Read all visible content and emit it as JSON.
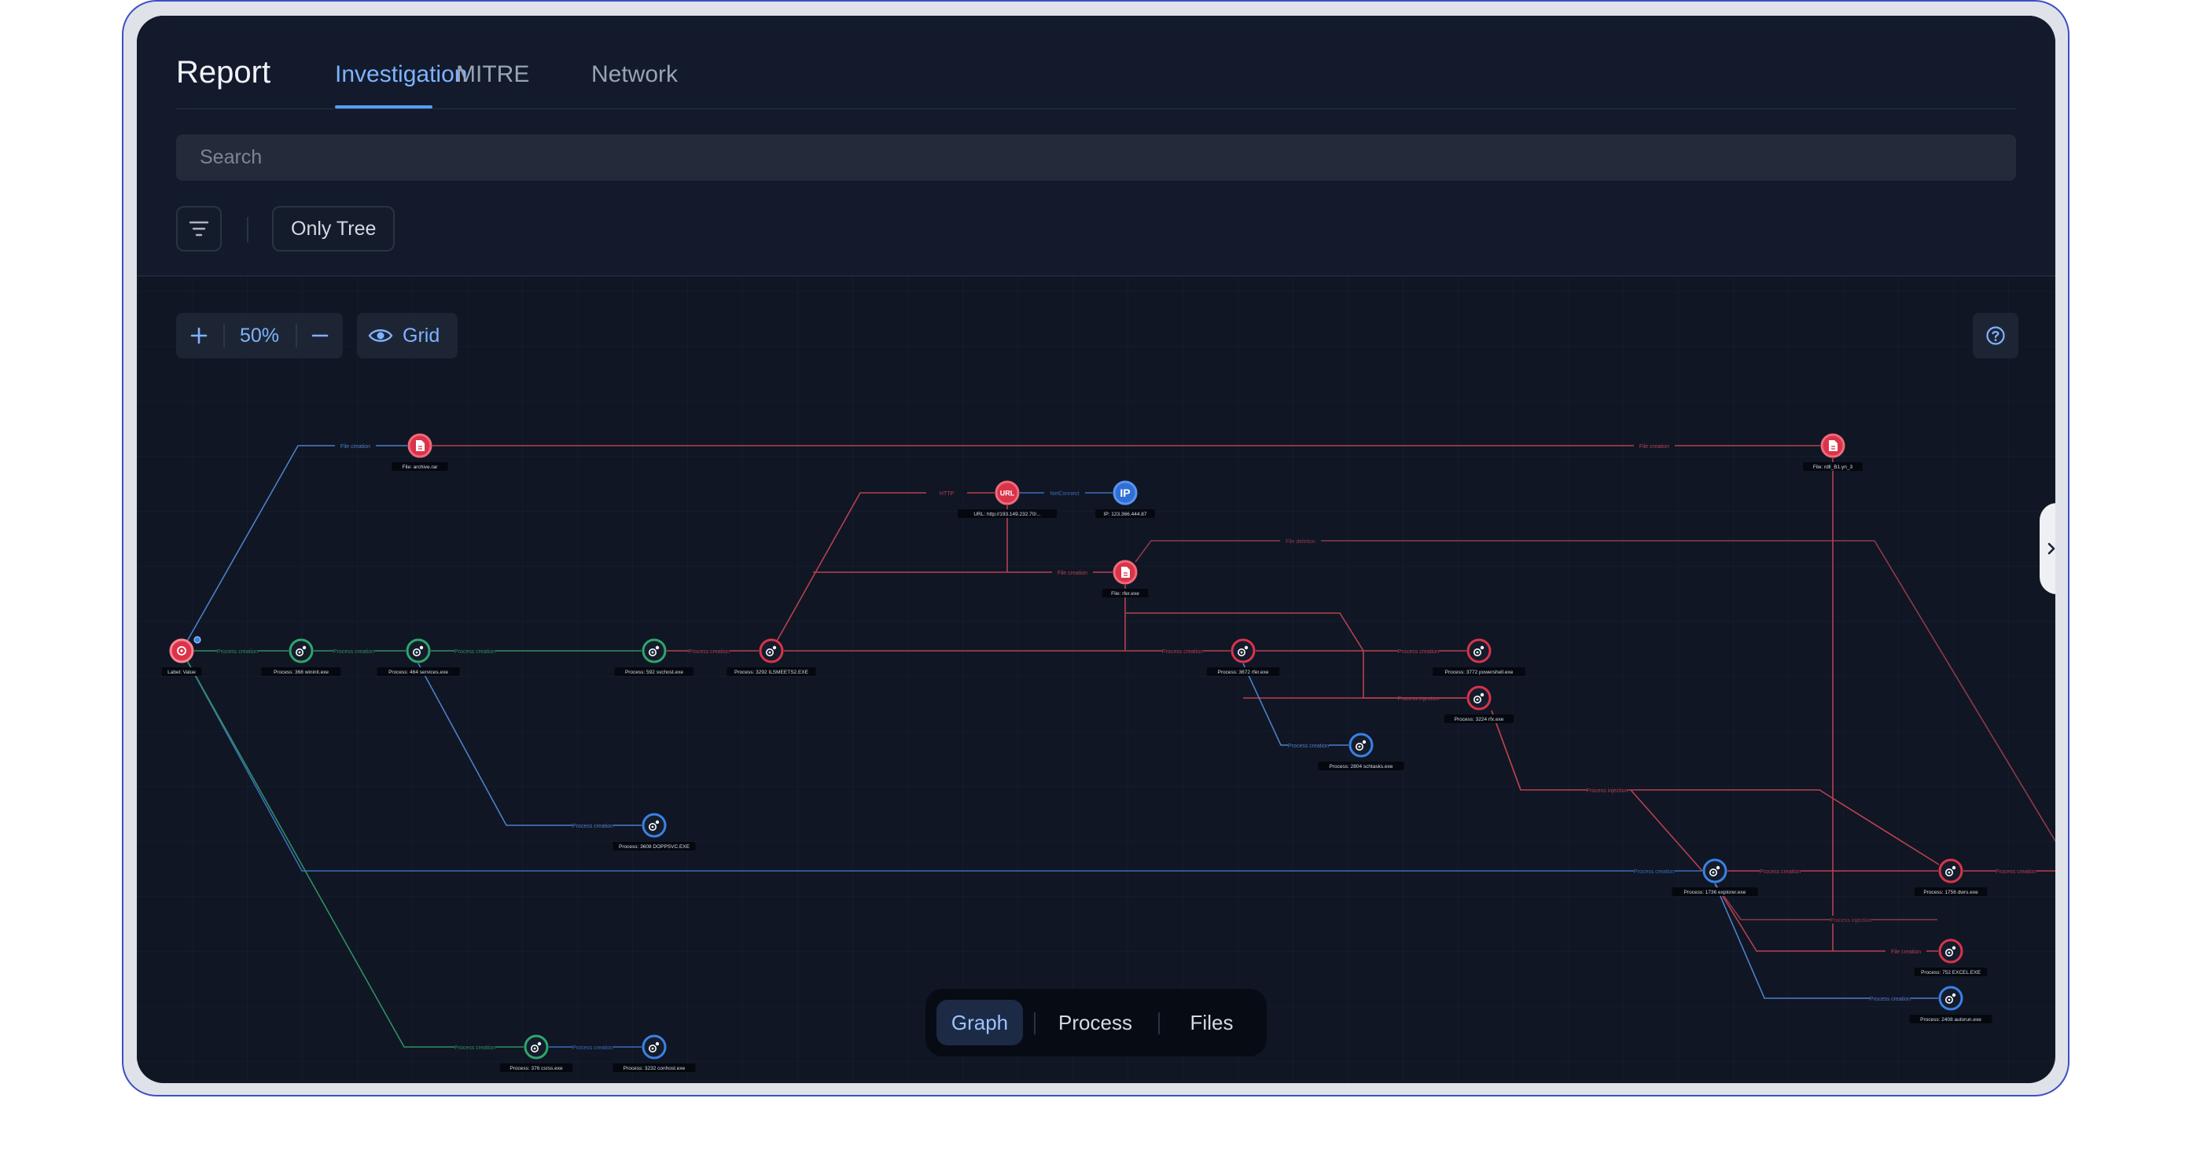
{
  "header": {
    "title": "Report",
    "tabs": [
      {
        "label": "Investigation",
        "active": true
      },
      {
        "label": "MITRE",
        "active": false
      },
      {
        "label": "Network",
        "active": false
      }
    ]
  },
  "search": {
    "placeholder": "Search",
    "value": ""
  },
  "filters": {
    "only_tree_label": "Only Tree"
  },
  "toolbar": {
    "zoom_level": "50%",
    "grid_label": "Grid"
  },
  "bottom_tabs": [
    {
      "label": "Graph",
      "active": true
    },
    {
      "label": "Process",
      "active": false
    },
    {
      "label": "Files",
      "active": false
    }
  ],
  "graph": {
    "colors": {
      "process_green": "#2fa66b",
      "process_blue": "#3a82e6",
      "malicious": "#d9344a",
      "ip_blue": "#2f6fd6"
    },
    "nodes": [
      {
        "id": "label",
        "kind": "label",
        "label": "Label: Value"
      },
      {
        "id": "archive",
        "kind": "file-bad",
        "label": "File: archive.rar"
      },
      {
        "id": "wininit",
        "kind": "proc-green",
        "label": "Process: 368 wininit.exe"
      },
      {
        "id": "services",
        "kind": "proc-green",
        "label": "Process: 464 services.exe"
      },
      {
        "id": "svchost",
        "kind": "proc-green",
        "label": "Process: 592 svchost.exe"
      },
      {
        "id": "shm",
        "kind": "proc-bad",
        "label": "Process: 3292 ILSMEETS2.EXE"
      },
      {
        "id": "url",
        "kind": "url",
        "label": "URL: http://193.149.232.70/..."
      },
      {
        "id": "ip",
        "kind": "ip",
        "label": "IP: 123.366.444.87"
      },
      {
        "id": "fileexe",
        "kind": "file-bad",
        "label": "File: rfer.exe"
      },
      {
        "id": "rfer",
        "kind": "proc-bad",
        "label": "Process: 3672 rfer.exe"
      },
      {
        "id": "powershell",
        "kind": "proc-bad",
        "label": "Process: 3772 powershell.exe"
      },
      {
        "id": "rfx",
        "kind": "proc-bad",
        "label": "Process: 3224 rfx.exe"
      },
      {
        "id": "schtasks",
        "kind": "proc-blue",
        "label": "Process: 2804 schtasks.exe"
      },
      {
        "id": "dopsvc",
        "kind": "proc-blue",
        "label": "Process: 3608 DOPPSVC.EXE"
      },
      {
        "id": "explorer",
        "kind": "proc-blue",
        "label": "Process: 1736 explorer.exe"
      },
      {
        "id": "rfdll",
        "kind": "file-bad",
        "label": "File: rdll_B1.yn_3"
      },
      {
        "id": "davsvc",
        "kind": "proc-bad",
        "label": "Process: 1756 dwrs.exe"
      },
      {
        "id": "excel",
        "kind": "proc-bad",
        "label": "Process: 752 EXCEL.EXE"
      },
      {
        "id": "autorun",
        "kind": "proc-blue",
        "label": "Process: 2408 autorun.exe"
      },
      {
        "id": "csrss",
        "kind": "proc-green",
        "label": "Process: 376 csrss.exe"
      },
      {
        "id": "conhost",
        "kind": "proc-blue",
        "label": "Process: 3232 conhost.exe"
      }
    ],
    "edges": [
      {
        "label": "File creation"
      },
      {
        "label": "Process creation"
      },
      {
        "label": "HTTP"
      },
      {
        "label": "NetConnect"
      },
      {
        "label": "File deletion"
      },
      {
        "label": "Process injection"
      }
    ]
  }
}
